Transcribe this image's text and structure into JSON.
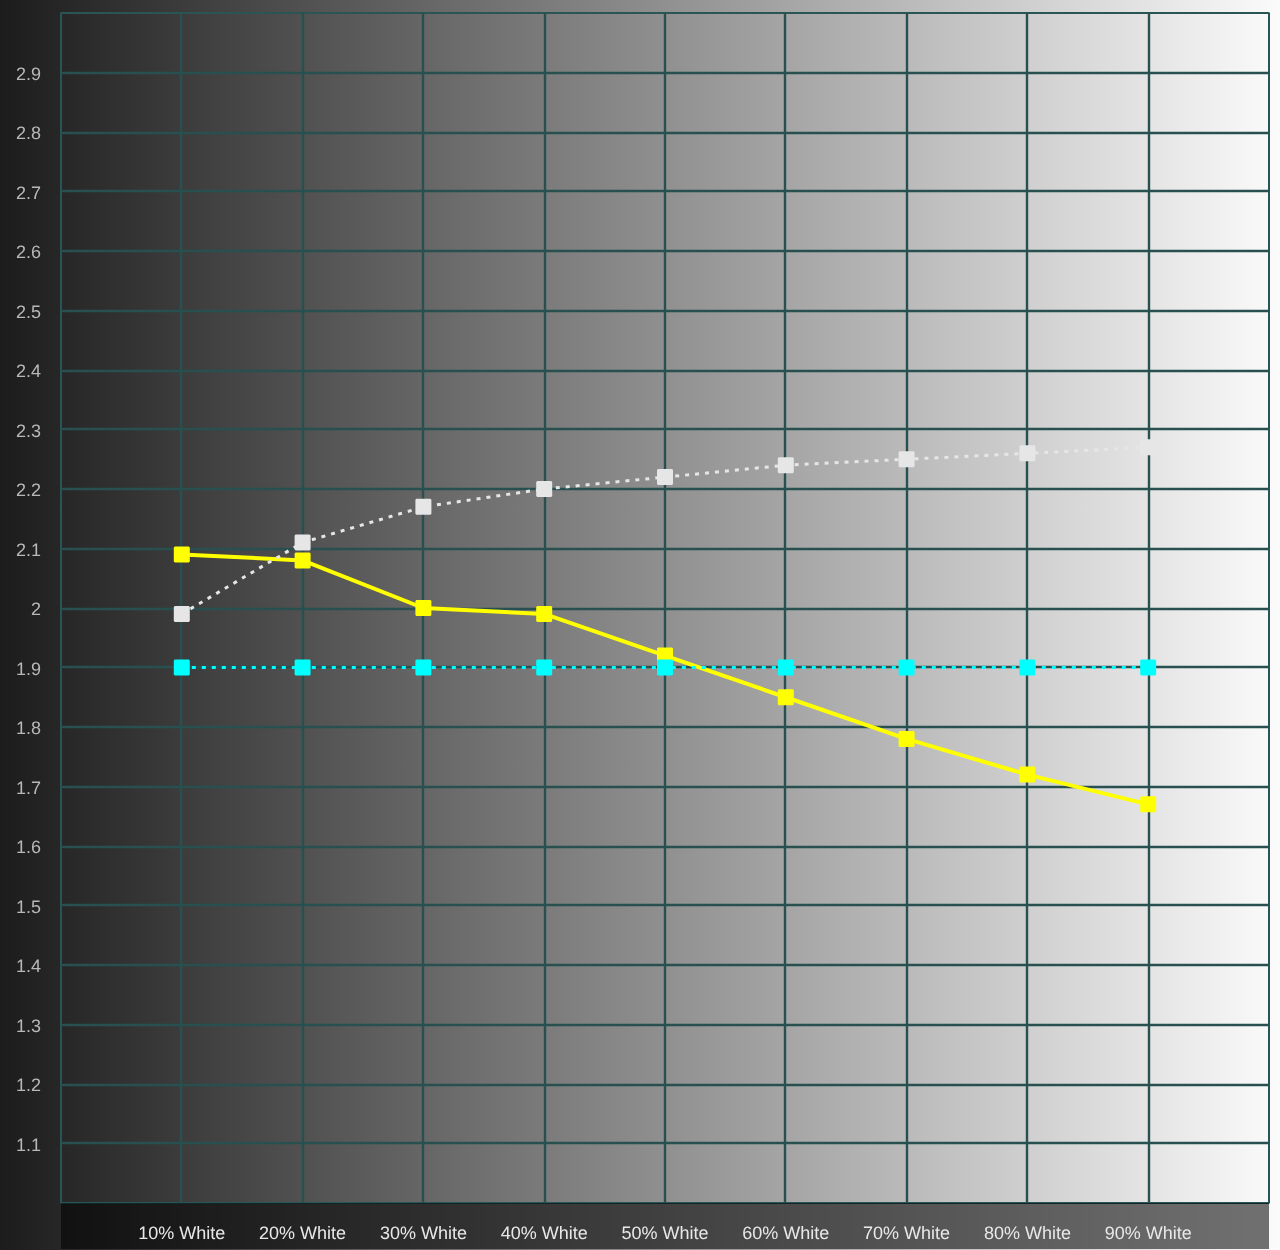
{
  "chart_data": {
    "type": "line",
    "categories": [
      "10% White",
      "20% White",
      "30% White",
      "40% White",
      "50% White",
      "60% White",
      "70% White",
      "80% White",
      "90% White"
    ],
    "series": [
      {
        "color": "#ffff00",
        "line_style": "solid",
        "values": [
          2.09,
          2.08,
          2.0,
          1.99,
          1.92,
          1.85,
          1.78,
          1.72,
          1.67
        ]
      },
      {
        "color": "#e6e6e6",
        "line_style": "dotted",
        "values": [
          1.99,
          2.11,
          2.17,
          2.2,
          2.22,
          2.24,
          2.25,
          2.26,
          2.27
        ]
      },
      {
        "color": "#00ffff",
        "line_style": "dotted",
        "values": [
          1.9,
          1.9,
          1.9,
          1.9,
          1.9,
          1.9,
          1.9,
          1.9,
          1.9
        ]
      }
    ],
    "ylim": [
      1,
      3
    ],
    "yticks": [
      1.1,
      1.2,
      1.3,
      1.4,
      1.5,
      1.6,
      1.7,
      1.8,
      1.9,
      2,
      2.1,
      2.2,
      2.3,
      2.4,
      2.5,
      2.6,
      2.7,
      2.8,
      2.9
    ],
    "grid": true,
    "marker": "square"
  }
}
